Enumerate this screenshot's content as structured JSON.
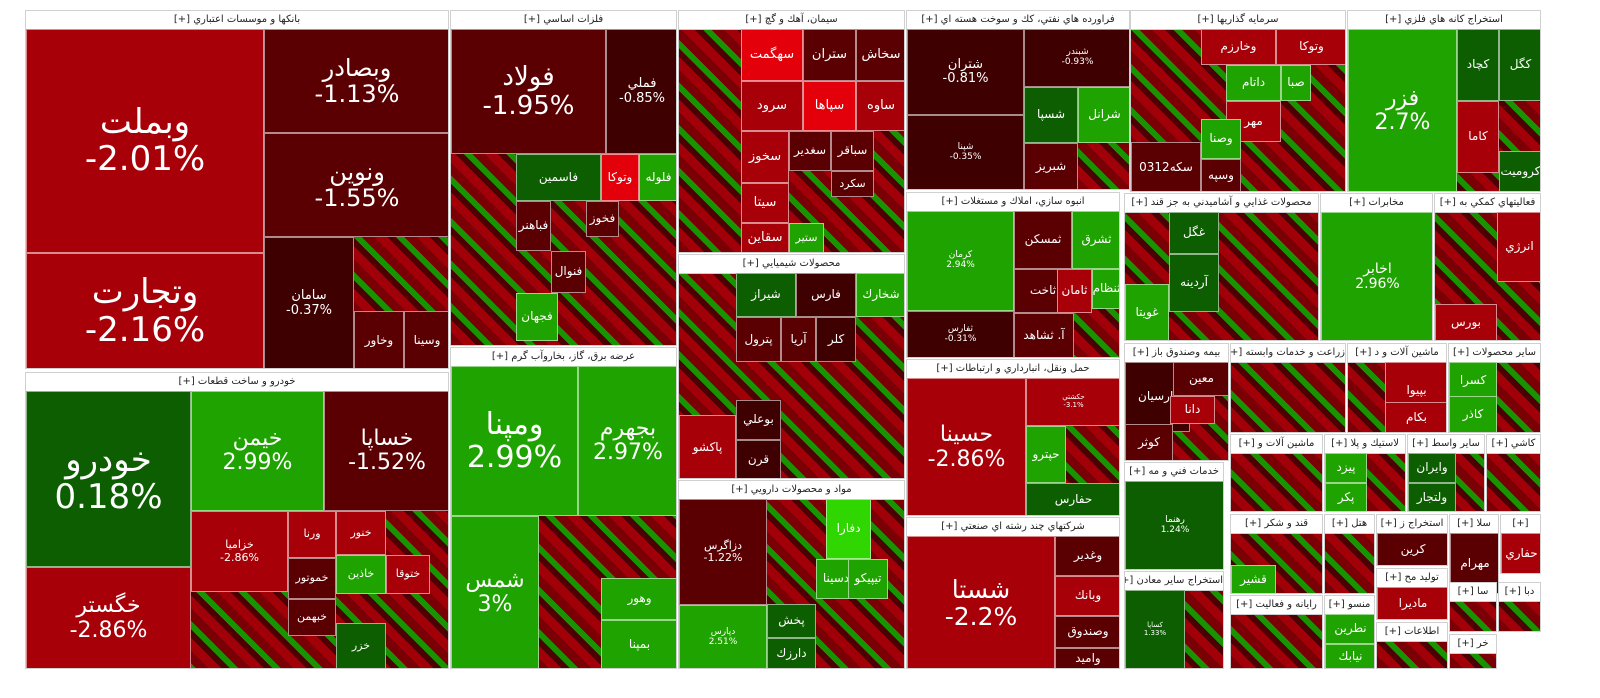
{
  "chart_data": {
    "type": "treemap",
    "colors": {
      "up_strong": "#2fd600",
      "up": "#1fa300",
      "up_dark": "#0c5e00",
      "down_strong": "#e4000b",
      "down": "#a80008",
      "down_dark": "#5a0003",
      "down_darkest": "#3f0002"
    },
    "sectors": [
      {
        "name": "بانكها و موسسات اعتباري [+]",
        "tiles": [
          {
            "name": "وبملت",
            "pct": "-2.01%",
            "c": "down"
          },
          {
            "name": "وتجارت",
            "pct": "-2.16%",
            "c": "down"
          },
          {
            "name": "وبصادر",
            "pct": "-1.13%",
            "c": "down_dark"
          },
          {
            "name": "ونوين",
            "pct": "-1.55%",
            "c": "down_dark"
          },
          {
            "name": "سامان",
            "pct": "-0.37%",
            "c": "down_darkest"
          },
          {
            "name": "وخاور",
            "pct": "",
            "c": "down_dark"
          },
          {
            "name": "وسينا",
            "pct": "",
            "c": "down_dark"
          }
        ]
      },
      {
        "name": "خودرو و ساخت قطعات [+]",
        "tiles": [
          {
            "name": "خودرو",
            "pct": "0.18%",
            "c": "up_dark"
          },
          {
            "name": "خيمن",
            "pct": "2.99%",
            "c": "up"
          },
          {
            "name": "خساپا",
            "pct": "-1.52%",
            "c": "down_dark"
          },
          {
            "name": "خگستر",
            "pct": "-2.86%",
            "c": "down"
          },
          {
            "name": "خزاميا",
            "pct": "-2.86%",
            "c": "down"
          },
          {
            "name": "ورنا",
            "pct": "",
            "c": "down"
          },
          {
            "name": "خنور",
            "pct": "",
            "c": "down"
          },
          {
            "name": "خموتور",
            "pct": "",
            "c": "down_dark"
          },
          {
            "name": "خبهمن",
            "pct": "",
            "c": "down_dark"
          },
          {
            "name": "خاذين",
            "pct": "",
            "c": "up"
          },
          {
            "name": "ختوقا",
            "pct": "",
            "c": "down"
          },
          {
            "name": "خزر",
            "pct": "",
            "c": "up_dark"
          }
        ]
      },
      {
        "name": "فلزات اساسي [+]",
        "tiles": [
          {
            "name": "فولاد",
            "pct": "-1.95%",
            "c": "down_dark"
          },
          {
            "name": "فملي",
            "pct": "-0.85%",
            "c": "down_darkest"
          },
          {
            "name": "فاسمين",
            "pct": "",
            "c": "up_dark"
          },
          {
            "name": "وتوكا",
            "pct": "",
            "c": "down_strong"
          },
          {
            "name": "فلوله",
            "pct": "",
            "c": "up"
          },
          {
            "name": "فباهنر",
            "pct": "",
            "c": "down_dark"
          },
          {
            "name": "فخوز",
            "pct": "",
            "c": "down_dark"
          },
          {
            "name": "فجهان",
            "pct": "",
            "c": "up"
          },
          {
            "name": "فنوال",
            "pct": "",
            "c": "down_dark"
          }
        ]
      },
      {
        "name": "عرضه برق، گاز، بخاروآب گرم [+]",
        "tiles": [
          {
            "name": "ومپنا",
            "pct": "2.99%",
            "c": "up"
          },
          {
            "name": "بجهرم",
            "pct": "2.97%",
            "c": "up"
          },
          {
            "name": "شمس",
            "pct": "3%",
            "c": "up"
          },
          {
            "name": "بمپنا",
            "pct": "",
            "c": "up"
          },
          {
            "name": "وهور",
            "pct": "",
            "c": "up"
          }
        ]
      },
      {
        "name": "سيمان، آهك و گچ [+]",
        "tiles": [
          {
            "name": "سخاش",
            "pct": "",
            "c": "down_dark"
          },
          {
            "name": "ستران",
            "pct": "",
            "c": "down_dark"
          },
          {
            "name": "سهگمت",
            "pct": "",
            "c": "down_strong"
          },
          {
            "name": "ساوه",
            "pct": "",
            "c": "down"
          },
          {
            "name": "سپاها",
            "pct": "",
            "c": "down_strong"
          },
          {
            "name": "سرود",
            "pct": "",
            "c": "down"
          },
          {
            "name": "سخوز",
            "pct": "",
            "c": "down"
          },
          {
            "name": "سيتا",
            "pct": "",
            "c": "down"
          },
          {
            "name": "سقاين",
            "pct": "",
            "c": "down"
          },
          {
            "name": "سغدير",
            "pct": "",
            "c": "down_dark"
          },
          {
            "name": "سباقر",
            "pct": "",
            "c": "down_dark"
          },
          {
            "name": "سكرد",
            "pct": "",
            "c": "down_dark"
          },
          {
            "name": "ستير",
            "pct": "",
            "c": "up"
          }
        ]
      },
      {
        "name": "محصولات شيميايي [+]",
        "tiles": [
          {
            "name": "شخارك",
            "pct": "",
            "c": "up"
          },
          {
            "name": "فارس",
            "pct": "",
            "c": "down_darkest"
          },
          {
            "name": "شيراز",
            "pct": "",
            "c": "up_dark"
          },
          {
            "name": "پترول",
            "pct": "",
            "c": "down_dark"
          },
          {
            "name": "آريا",
            "pct": "",
            "c": "down_dark"
          },
          {
            "name": "كلر",
            "pct": "",
            "c": "down_darkest"
          },
          {
            "name": "بوعلي",
            "pct": "",
            "c": "down_darkest"
          },
          {
            "name": "قرن",
            "pct": "",
            "c": "down_darkest"
          },
          {
            "name": "پاكشو",
            "pct": "",
            "c": "down"
          }
        ]
      },
      {
        "name": "مواد و محصولات دارويي [+]",
        "tiles": [
          {
            "name": "دزاگرس",
            "pct": "-1.22%",
            "c": "down_dark"
          },
          {
            "name": "دفارا",
            "pct": "",
            "c": "up_strong"
          },
          {
            "name": "دسينا",
            "pct": "",
            "c": "up"
          },
          {
            "name": "تيپيكو",
            "pct": "",
            "c": "up"
          },
          {
            "name": "پخش",
            "pct": "",
            "c": "up_dark"
          },
          {
            "name": "دارزك",
            "pct": "",
            "c": "up_dark"
          },
          {
            "name": "دپارس",
            "pct": "2.51%",
            "c": "up"
          }
        ]
      },
      {
        "name": "فراورده هاي نفتي، كك و سوخت هسته اي [+]",
        "tiles": [
          {
            "name": "شتران",
            "pct": "-0.81%",
            "c": "down_darkest"
          },
          {
            "name": "شبندر",
            "pct": "-0.93%",
            "c": "down_darkest"
          },
          {
            "name": "شپنا",
            "pct": "-0.35%",
            "c": "down_darkest"
          },
          {
            "name": "شسپا",
            "pct": "",
            "c": "up_dark"
          },
          {
            "name": "شرانل",
            "pct": "",
            "c": "up"
          },
          {
            "name": "شبريز",
            "pct": "",
            "c": "down_dark"
          }
        ]
      },
      {
        "name": "انبوه سازي، املاك و مستغلات [+]",
        "tiles": [
          {
            "name": "كرمان",
            "pct": "2.94%",
            "c": "up"
          },
          {
            "name": "ثمسكن",
            "pct": "",
            "c": "down_dark"
          },
          {
            "name": "ثشرق",
            "pct": "",
            "c": "up"
          },
          {
            "name": "ثفارس",
            "pct": "-0.31%",
            "c": "down_darkest"
          },
          {
            "name": "ثاخت",
            "pct": "",
            "c": "down_dark"
          },
          {
            "name": "ثامان",
            "pct": "",
            "c": "down"
          },
          {
            "name": "ثنظام",
            "pct": "",
            "c": "up"
          },
          {
            "name": "آ. ثشاهد",
            "pct": "",
            "c": "down_dark"
          }
        ]
      },
      {
        "name": "حمل ونقل، انبارداري و ارتباطات [+]",
        "tiles": [
          {
            "name": "حسينا",
            "pct": "-2.86%",
            "c": "down"
          },
          {
            "name": "حكشتي",
            "pct": "-3.1%",
            "c": "down"
          },
          {
            "name": "حپترو",
            "pct": "",
            "c": "up"
          },
          {
            "name": "حفارس",
            "pct": "",
            "c": "up_dark"
          }
        ]
      },
      {
        "name": "شركتهاي چند رشته اي صنعتي [+]",
        "tiles": [
          {
            "name": "شستا",
            "pct": "-2.2%",
            "c": "down"
          },
          {
            "name": "وغدير",
            "pct": "",
            "c": "down_dark"
          },
          {
            "name": "وبانك",
            "pct": "",
            "c": "down"
          },
          {
            "name": "وصندوق",
            "pct": "",
            "c": "down_dark"
          },
          {
            "name": "واميد",
            "pct": "",
            "c": "down_dark"
          }
        ]
      },
      {
        "name": "سرمايه گذاريها [+]",
        "tiles": [
          {
            "name": "وتوكا",
            "pct": "",
            "c": "down"
          },
          {
            "name": "وخارزم",
            "pct": "",
            "c": "down"
          },
          {
            "name": "صبا",
            "pct": "",
            "c": "up"
          },
          {
            "name": "داتام",
            "pct": "",
            "c": "up"
          },
          {
            "name": "مهر",
            "pct": "",
            "c": "down"
          },
          {
            "name": "وصنا",
            "pct": "",
            "c": "up"
          },
          {
            "name": "وسپه",
            "pct": "",
            "c": "down_dark"
          },
          {
            "name": "سكه0312",
            "pct": "",
            "c": "down_dark"
          }
        ]
      },
      {
        "name": "استخراج كانه هاي فلزي [+]",
        "tiles": [
          {
            "name": "فزر",
            "pct": "2.7%",
            "c": "up"
          },
          {
            "name": "كگل",
            "pct": "",
            "c": "up_dark"
          },
          {
            "name": "كچاد",
            "pct": "",
            "c": "up_dark"
          },
          {
            "name": "كاما",
            "pct": "",
            "c": "down"
          },
          {
            "name": "كرومیت",
            "pct": "",
            "c": "up_dark"
          }
        ]
      },
      {
        "name": "محصولات غذايي و آشاميدني به جز قند [+]",
        "tiles": [
          {
            "name": "غگل",
            "pct": "",
            "c": "up_dark"
          },
          {
            "name": "غويتا",
            "pct": "",
            "c": "up"
          },
          {
            "name": "آردينه",
            "pct": "",
            "c": "up_dark"
          }
        ]
      },
      {
        "name": "مخابرات [+]",
        "tiles": [
          {
            "name": "اخابر",
            "pct": "2.96%",
            "c": "up"
          }
        ]
      },
      {
        "name": "فعاليتهاي كمكي به [+]",
        "tiles": [
          {
            "name": "انرژي",
            "pct": "",
            "c": "down"
          },
          {
            "name": "بورس",
            "pct": "",
            "c": "down"
          }
        ]
      },
      {
        "name": "بيمه وصندوق باز [+]",
        "tiles": [
          {
            "name": "پارسيان",
            "pct": "",
            "c": "down_darkest"
          },
          {
            "name": "معين",
            "pct": "",
            "c": "down_dark"
          },
          {
            "name": "دانا",
            "pct": "",
            "c": "down"
          },
          {
            "name": "كوثر",
            "pct": "",
            "c": "down_dark"
          }
        ]
      },
      {
        "name": "زراعت و خدمات وابسته [+]",
        "tiles": []
      },
      {
        "name": "ماشين آلات و د [+]",
        "tiles": [
          {
            "name": "بپيوا",
            "pct": "",
            "c": "down"
          },
          {
            "name": "بكام",
            "pct": "",
            "c": "down"
          }
        ]
      },
      {
        "name": "ساير محصولات [+]",
        "tiles": [
          {
            "name": "كسرا",
            "pct": "",
            "c": "up"
          },
          {
            "name": "كاذر",
            "pct": "",
            "c": "up"
          }
        ]
      },
      {
        "name": "خدمات فني و مه [+]",
        "tiles": [
          {
            "name": "رهنما",
            "pct": "1.24%",
            "c": "up_dark"
          }
        ]
      },
      {
        "name": "استخراج ساير معادن [+]",
        "tiles": [
          {
            "name": "كساپا",
            "pct": "1.33%",
            "c": "up_dark"
          }
        ]
      },
      {
        "name": "ماشين آلات و [+]",
        "tiles": []
      },
      {
        "name": "لاستيك و پلا [+]",
        "tiles": [
          {
            "name": "پيزد",
            "pct": "",
            "c": "up"
          },
          {
            "name": "پكر",
            "pct": "",
            "c": "up"
          }
        ]
      },
      {
        "name": "ساير واسط [+]",
        "tiles": [
          {
            "name": "وايران",
            "pct": "",
            "c": "up_dark"
          },
          {
            "name": "ولتجار",
            "pct": "",
            "c": "up_dark"
          }
        ]
      },
      {
        "name": "كاشي [+]",
        "tiles": []
      },
      {
        "name": "قند و شكر [+]",
        "tiles": [
          {
            "name": "قشير",
            "pct": "",
            "c": "up"
          }
        ]
      },
      {
        "name": "هتل [+]",
        "tiles": []
      },
      {
        "name": "استخراج ز [+]",
        "tiles": [
          {
            "name": "كرين",
            "pct": "",
            "c": "down_dark"
          }
        ]
      },
      {
        "name": "سلا [+]",
        "tiles": [
          {
            "name": "مهرام",
            "pct": "",
            "c": "down_dark"
          }
        ]
      },
      {
        "name": "[+]",
        "tiles": [
          {
            "name": "حفاري",
            "pct": "",
            "c": "down"
          }
        ]
      },
      {
        "name": "رايانه و فعاليت [+]",
        "tiles": []
      },
      {
        "name": "منسو [+]",
        "tiles": [
          {
            "name": "نطرين",
            "pct": "",
            "c": "up"
          },
          {
            "name": "نيابك",
            "pct": "",
            "c": "up"
          }
        ]
      },
      {
        "name": "توليد مح [+]",
        "tiles": [
          {
            "name": "مادیرا",
            "pct": "",
            "c": "down"
          }
        ]
      },
      {
        "name": "اطلاعات [+]",
        "tiles": []
      },
      {
        "name": "سا [+]",
        "tiles": []
      },
      {
        "name": "دبا [+]",
        "tiles": []
      },
      {
        "name": "خر [+]",
        "tiles": []
      }
    ]
  }
}
